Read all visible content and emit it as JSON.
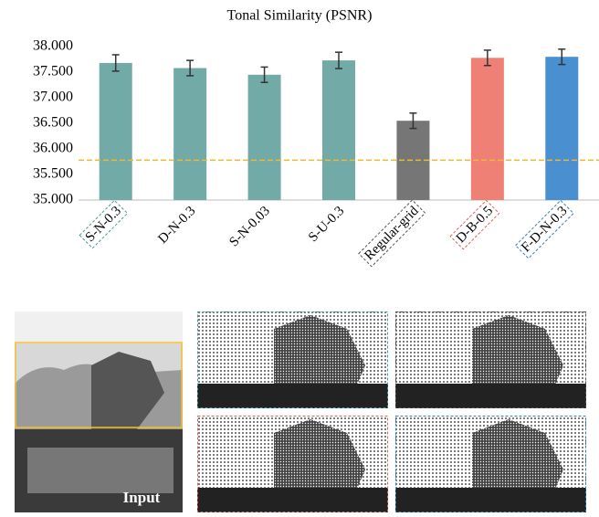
{
  "chart_data": {
    "type": "bar",
    "title": "Tonal Similarity (PSNR)",
    "categories": [
      "S-N-0.3",
      "D-N-0.3",
      "S-N-0.03",
      "S-U-0.3",
      "Regular-grid",
      "D-B-0.5",
      "F-D-N-0.3"
    ],
    "values": [
      37.68,
      37.58,
      37.45,
      37.73,
      36.55,
      37.78,
      37.8
    ],
    "errors": [
      0.16,
      0.15,
      0.15,
      0.16,
      0.15,
      0.15,
      0.15
    ],
    "colors": [
      "#72aaa8",
      "#72aaa8",
      "#72aaa8",
      "#72aaa8",
      "#767676",
      "#ee8076",
      "#4a8fd0"
    ],
    "label_box_colors": [
      "#4a9a9a",
      null,
      null,
      null,
      "#555555",
      "#e0605a",
      "#3a7ec8"
    ],
    "reference_line": {
      "value": 35.78,
      "color": "#f0b830"
    },
    "ylim": [
      35,
      38
    ],
    "yticks": [
      {
        "value": 35,
        "label": "35.000"
      },
      {
        "value": 35.5,
        "label": "35.500"
      },
      {
        "value": 36,
        "label": "36.000"
      },
      {
        "value": 36.5,
        "label": "36.500"
      },
      {
        "value": 37,
        "label": "37.000"
      },
      {
        "value": 37.5,
        "label": "37.500"
      },
      {
        "value": 38,
        "label": "38.000"
      }
    ],
    "grid": false
  },
  "images": {
    "input_label": "Input"
  }
}
